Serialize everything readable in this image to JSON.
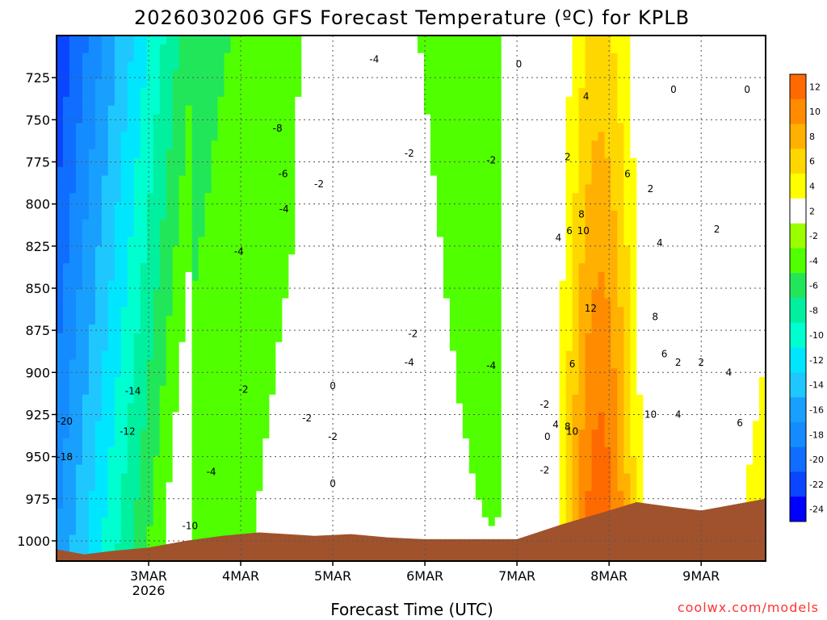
{
  "page": {
    "title": "2026030206 GFS Forecast Temperature (ºC) for KPLB",
    "credit": "coolwx.com/models"
  },
  "chart_data": {
    "type": "heatmap",
    "title": "2026030206 GFS Forecast Temperature (ºC) for KPLB",
    "xlabel": "Forecast Time (UTC)",
    "ylabel": "",
    "x_ticks": [
      "3MAR",
      "4MAR",
      "5MAR",
      "6MAR",
      "7MAR",
      "8MAR",
      "9MAR"
    ],
    "x_tick_sub": {
      "3MAR": "2026"
    },
    "y_ticks": [
      725,
      750,
      775,
      800,
      825,
      850,
      875,
      900,
      925,
      950,
      975,
      1000
    ],
    "y_range_hpa": [
      700,
      1012
    ],
    "x_range_days": [
      2.0,
      9.7
    ],
    "grid": true,
    "colorbar": {
      "levels": [
        -24,
        -22,
        -20,
        -18,
        -16,
        -14,
        -12,
        -10,
        -8,
        -6,
        -4,
        -2,
        2,
        4,
        6,
        8,
        10,
        12
      ],
      "colors": [
        "#0000ff",
        "#0a46ff",
        "#0f6eff",
        "#148cff",
        "#19a0ff",
        "#1ec8ff",
        "#00e6ff",
        "#00ffd0",
        "#00f0a0",
        "#22e65a",
        "#50ff00",
        "#9cff00",
        "#ffffff",
        "#ffff00",
        "#ffd700",
        "#ffb000",
        "#ff8c00",
        "#ff6a00"
      ]
    },
    "contour_labels": [
      {
        "t": 2.09,
        "p": 931,
        "v": "-20"
      },
      {
        "t": 2.09,
        "p": 952,
        "v": "-18"
      },
      {
        "t": 2.83,
        "p": 913,
        "v": "-14"
      },
      {
        "t": 2.77,
        "p": 937,
        "v": "-12"
      },
      {
        "t": 3.45,
        "p": 993,
        "v": "-10"
      },
      {
        "t": 3.68,
        "p": 961,
        "v": "-4"
      },
      {
        "t": 3.98,
        "p": 830,
        "v": "-4"
      },
      {
        "t": 4.03,
        "p": 912,
        "v": "-2"
      },
      {
        "t": 4.4,
        "p": 757,
        "v": "-8"
      },
      {
        "t": 4.46,
        "p": 784,
        "v": "-6"
      },
      {
        "t": 4.47,
        "p": 805,
        "v": "-4"
      },
      {
        "t": 4.72,
        "p": 929,
        "v": "-2"
      },
      {
        "t": 4.85,
        "p": 790,
        "v": "-2"
      },
      {
        "t": 5.0,
        "p": 940,
        "v": "-2"
      },
      {
        "t": 5.0,
        "p": 910,
        "v": "0"
      },
      {
        "t": 5.0,
        "p": 968,
        "v": "0"
      },
      {
        "t": 5.45,
        "p": 716,
        "v": "-4"
      },
      {
        "t": 5.83,
        "p": 772,
        "v": "-2"
      },
      {
        "t": 5.87,
        "p": 879,
        "v": "-2"
      },
      {
        "t": 5.83,
        "p": 896,
        "v": "-4"
      },
      {
        "t": 6.72,
        "p": 776,
        "v": "-2"
      },
      {
        "t": 6.72,
        "p": 898,
        "v": "-4"
      },
      {
        "t": 7.02,
        "p": 719,
        "v": "0"
      },
      {
        "t": 7.3,
        "p": 921,
        "v": "-2"
      },
      {
        "t": 7.33,
        "p": 940,
        "v": "0"
      },
      {
        "t": 7.3,
        "p": 960,
        "v": "-2"
      },
      {
        "t": 7.42,
        "p": 933,
        "v": "4"
      },
      {
        "t": 7.55,
        "p": 934,
        "v": "8"
      },
      {
        "t": 7.6,
        "p": 937,
        "v": "10"
      },
      {
        "t": 7.45,
        "p": 822,
        "v": "4"
      },
      {
        "t": 7.57,
        "p": 818,
        "v": "6"
      },
      {
        "t": 7.7,
        "p": 808,
        "v": "8"
      },
      {
        "t": 7.72,
        "p": 818,
        "v": "10"
      },
      {
        "t": 7.55,
        "p": 774,
        "v": "2"
      },
      {
        "t": 7.75,
        "p": 738,
        "v": "4"
      },
      {
        "t": 7.6,
        "p": 897,
        "v": "6"
      },
      {
        "t": 7.8,
        "p": 864,
        "v": "12"
      },
      {
        "t": 8.2,
        "p": 784,
        "v": "6"
      },
      {
        "t": 8.45,
        "p": 793,
        "v": "2"
      },
      {
        "t": 8.55,
        "p": 825,
        "v": "4"
      },
      {
        "t": 8.5,
        "p": 869,
        "v": "8"
      },
      {
        "t": 8.6,
        "p": 891,
        "v": "6"
      },
      {
        "t": 8.45,
        "p": 927,
        "v": "10"
      },
      {
        "t": 8.75,
        "p": 927,
        "v": "4"
      },
      {
        "t": 8.75,
        "p": 896,
        "v": "2"
      },
      {
        "t": 9.0,
        "p": 896,
        "v": "2"
      },
      {
        "t": 9.17,
        "p": 817,
        "v": "2"
      },
      {
        "t": 9.3,
        "p": 902,
        "v": "4"
      },
      {
        "t": 9.42,
        "p": 932,
        "v": "6"
      },
      {
        "t": 8.7,
        "p": 734,
        "v": "0"
      },
      {
        "t": 9.5,
        "p": 734,
        "v": "0"
      }
    ]
  }
}
